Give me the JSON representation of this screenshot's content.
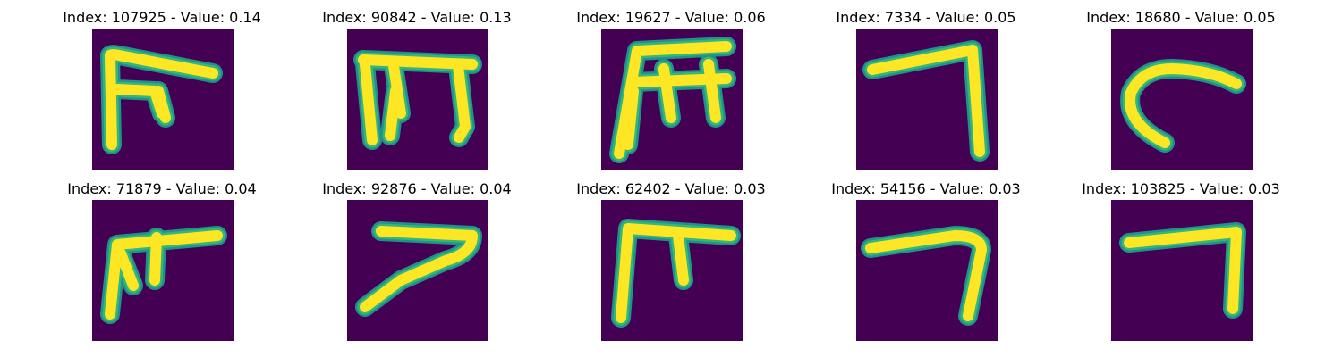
{
  "figure": {
    "colors": {
      "background": "#ffffff",
      "cell_background": "#440154",
      "stroke_outer": "#21918c",
      "stroke_mid": "#35b779",
      "stroke_core": "#fde725"
    },
    "panels": [
      {
        "title": "Index: 107925 - Value: 0.14",
        "glyph": "glyph-1"
      },
      {
        "title": "Index: 90842 - Value: 0.13",
        "glyph": "glyph-2"
      },
      {
        "title": "Index: 19627 - Value: 0.06",
        "glyph": "glyph-3"
      },
      {
        "title": "Index: 7334 - Value: 0.05",
        "glyph": "glyph-4"
      },
      {
        "title": "Index: 18680 - Value: 0.05",
        "glyph": "glyph-5"
      },
      {
        "title": "Index: 71879 - Value: 0.04",
        "glyph": "glyph-6"
      },
      {
        "title": "Index: 92876 - Value: 0.04",
        "glyph": "glyph-7"
      },
      {
        "title": "Index: 62402 - Value: 0.03",
        "glyph": "glyph-8"
      },
      {
        "title": "Index: 54156 - Value: 0.03",
        "glyph": "glyph-9"
      },
      {
        "title": "Index: 103825 - Value: 0.03",
        "glyph": "glyph-10"
      }
    ]
  }
}
